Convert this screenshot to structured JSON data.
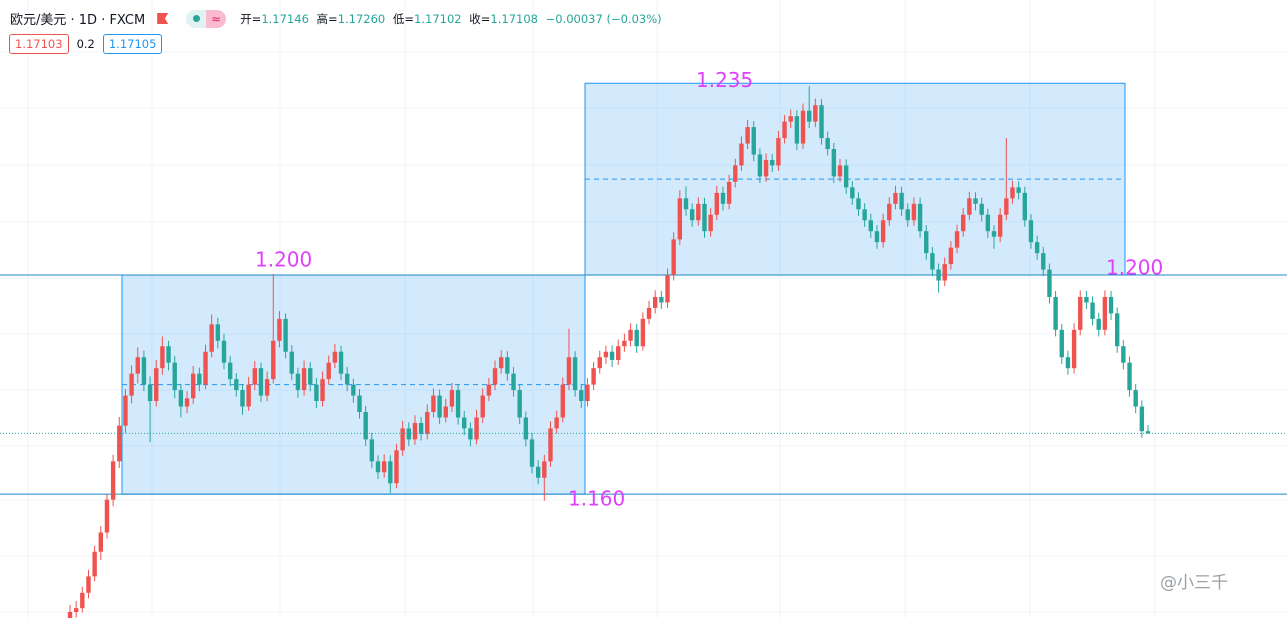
{
  "header": {
    "symbol": "欧元/美元 · 1D · FXCM",
    "ohlc": [
      {
        "label": "开=",
        "value": "1.17146"
      },
      {
        "label": "高=",
        "value": "1.17260"
      },
      {
        "label": "低=",
        "value": "1.17102"
      },
      {
        "label": "收=",
        "value": "1.17108"
      }
    ],
    "change": "−0.00037 (−0.03%)",
    "bid": "1.17103",
    "spread": "0.2",
    "ask": "1.17105",
    "watermark": "@小三千"
  },
  "chart_data": {
    "type": "candlestick",
    "ylim": [
      1.1374,
      1.2502
    ],
    "up_color": "#ef5350",
    "down_color": "#26a69a",
    "lines": [
      1.2,
      1.16
    ],
    "zones": [
      [
        1.16,
        1.2
      ],
      [
        1.2,
        1.235
      ]
    ],
    "annotations": [
      {
        "value": 1.2,
        "label": "1.200"
      },
      {
        "value": 1.235,
        "label": "1.235"
      },
      {
        "value": 1.2,
        "label": "1.200"
      },
      {
        "value": 1.16,
        "label": "1.160"
      }
    ],
    "candles": [
      [
        1.137,
        1.1398,
        1.1362,
        1.1385
      ],
      [
        1.1385,
        1.1405,
        1.1375,
        1.1392
      ],
      [
        1.1392,
        1.1431,
        1.1384,
        1.142
      ],
      [
        1.142,
        1.1462,
        1.141,
        1.145
      ],
      [
        1.145,
        1.1506,
        1.1441,
        1.1495
      ],
      [
        1.1495,
        1.1542,
        1.148,
        1.153
      ],
      [
        1.153,
        1.1601,
        1.1519,
        1.159
      ],
      [
        1.159,
        1.1672,
        1.1578,
        1.166
      ],
      [
        1.166,
        1.1741,
        1.1648,
        1.1725
      ],
      [
        1.1725,
        1.1792,
        1.1712,
        1.178
      ],
      [
        1.178,
        1.1835,
        1.1766,
        1.182
      ],
      [
        1.182,
        1.1868,
        1.1802,
        1.185
      ],
      [
        1.185,
        1.1862,
        1.1788,
        1.18
      ],
      [
        1.18,
        1.1815,
        1.1695,
        1.177
      ],
      [
        1.177,
        1.1845,
        1.176,
        1.183
      ],
      [
        1.183,
        1.1888,
        1.1818,
        1.187
      ],
      [
        1.187,
        1.188,
        1.1826,
        1.184
      ],
      [
        1.184,
        1.1852,
        1.1775,
        1.179
      ],
      [
        1.179,
        1.1801,
        1.174,
        1.176
      ],
      [
        1.176,
        1.1788,
        1.1748,
        1.1775
      ],
      [
        1.1775,
        1.1834,
        1.1765,
        1.182
      ],
      [
        1.182,
        1.1831,
        1.1788,
        1.18
      ],
      [
        1.18,
        1.1873,
        1.1792,
        1.186
      ],
      [
        1.186,
        1.1928,
        1.185,
        1.191
      ],
      [
        1.191,
        1.1922,
        1.1866,
        1.188
      ],
      [
        1.188,
        1.1893,
        1.1828,
        1.184
      ],
      [
        1.184,
        1.1852,
        1.1797,
        1.181
      ],
      [
        1.181,
        1.1821,
        1.1778,
        1.179
      ],
      [
        1.179,
        1.18,
        1.1745,
        1.176
      ],
      [
        1.176,
        1.1814,
        1.1752,
        1.18
      ],
      [
        1.18,
        1.1843,
        1.179,
        1.183
      ],
      [
        1.183,
        1.184,
        1.1768,
        1.178
      ],
      [
        1.178,
        1.1824,
        1.177,
        1.181
      ],
      [
        1.181,
        1.2002,
        1.1802,
        1.188
      ],
      [
        1.188,
        1.1934,
        1.1868,
        1.192
      ],
      [
        1.192,
        1.193,
        1.1848,
        1.186
      ],
      [
        1.186,
        1.1872,
        1.1808,
        1.182
      ],
      [
        1.182,
        1.1831,
        1.1776,
        1.179
      ],
      [
        1.179,
        1.1844,
        1.178,
        1.183
      ],
      [
        1.183,
        1.1841,
        1.1788,
        1.18
      ],
      [
        1.18,
        1.1812,
        1.1757,
        1.177
      ],
      [
        1.177,
        1.1824,
        1.176,
        1.181
      ],
      [
        1.181,
        1.1853,
        1.18,
        1.184
      ],
      [
        1.184,
        1.1874,
        1.183,
        1.186
      ],
      [
        1.186,
        1.1871,
        1.1808,
        1.182
      ],
      [
        1.182,
        1.1832,
        1.1788,
        1.18
      ],
      [
        1.18,
        1.1811,
        1.1767,
        1.178
      ],
      [
        1.178,
        1.1792,
        1.1738,
        1.175
      ],
      [
        1.175,
        1.1761,
        1.1688,
        1.17
      ],
      [
        1.17,
        1.1712,
        1.1648,
        1.166
      ],
      [
        1.166,
        1.1671,
        1.1628,
        1.164
      ],
      [
        1.164,
        1.1673,
        1.163,
        1.166
      ],
      [
        1.166,
        1.1671,
        1.1602,
        1.162
      ],
      [
        1.162,
        1.1692,
        1.1611,
        1.168
      ],
      [
        1.168,
        1.1734,
        1.167,
        1.172
      ],
      [
        1.172,
        1.1731,
        1.1688,
        1.17
      ],
      [
        1.17,
        1.1744,
        1.169,
        1.173
      ],
      [
        1.173,
        1.1741,
        1.1698,
        1.171
      ],
      [
        1.171,
        1.1764,
        1.17,
        1.175
      ],
      [
        1.175,
        1.1793,
        1.174,
        1.178
      ],
      [
        1.178,
        1.1791,
        1.1728,
        1.174
      ],
      [
        1.174,
        1.1774,
        1.1731,
        1.176
      ],
      [
        1.176,
        1.1803,
        1.175,
        1.179
      ],
      [
        1.179,
        1.1801,
        1.1727,
        1.174
      ],
      [
        1.174,
        1.1752,
        1.1708,
        1.172
      ],
      [
        1.172,
        1.1731,
        1.1687,
        1.17
      ],
      [
        1.17,
        1.1754,
        1.1691,
        1.174
      ],
      [
        1.174,
        1.1793,
        1.173,
        1.178
      ],
      [
        1.178,
        1.1812,
        1.177,
        1.18
      ],
      [
        1.18,
        1.1844,
        1.179,
        1.183
      ],
      [
        1.183,
        1.1863,
        1.182,
        1.185
      ],
      [
        1.185,
        1.1861,
        1.1807,
        1.182
      ],
      [
        1.182,
        1.1832,
        1.1778,
        1.179
      ],
      [
        1.179,
        1.1801,
        1.1728,
        1.174
      ],
      [
        1.174,
        1.1751,
        1.1687,
        1.17
      ],
      [
        1.17,
        1.1712,
        1.1638,
        1.165
      ],
      [
        1.165,
        1.1662,
        1.1618,
        1.163
      ],
      [
        1.163,
        1.1672,
        1.1588,
        1.166
      ],
      [
        1.166,
        1.1733,
        1.165,
        1.172
      ],
      [
        1.172,
        1.1752,
        1.1711,
        1.174
      ],
      [
        1.174,
        1.1813,
        1.1731,
        1.18
      ],
      [
        1.18,
        1.1902,
        1.179,
        1.185
      ],
      [
        1.185,
        1.1861,
        1.1778,
        1.179
      ],
      [
        1.179,
        1.1801,
        1.1757,
        1.177
      ],
      [
        1.177,
        1.1812,
        1.176,
        1.18
      ],
      [
        1.18,
        1.1841,
        1.179,
        1.183
      ],
      [
        1.183,
        1.1862,
        1.182,
        1.185
      ],
      [
        1.185,
        1.1871,
        1.1838,
        1.186
      ],
      [
        1.186,
        1.1872,
        1.1832,
        1.1845
      ],
      [
        1.1845,
        1.1882,
        1.1836,
        1.187
      ],
      [
        1.187,
        1.1893,
        1.186,
        1.188
      ],
      [
        1.188,
        1.1912,
        1.187,
        1.19
      ],
      [
        1.19,
        1.1911,
        1.1858,
        1.187
      ],
      [
        1.187,
        1.1932,
        1.1862,
        1.192
      ],
      [
        1.192,
        1.1953,
        1.191,
        1.194
      ],
      [
        1.194,
        1.1972,
        1.193,
        1.196
      ],
      [
        1.196,
        1.1971,
        1.1938,
        1.195
      ],
      [
        1.195,
        1.2012,
        1.194,
        1.2
      ],
      [
        1.2,
        1.2078,
        1.199,
        1.2065
      ],
      [
        1.2065,
        1.2155,
        1.2055,
        1.214
      ],
      [
        1.214,
        1.2162,
        1.2108,
        1.212
      ],
      [
        1.212,
        1.2131,
        1.2088,
        1.21
      ],
      [
        1.21,
        1.2142,
        1.209,
        1.213
      ],
      [
        1.213,
        1.2141,
        1.2068,
        1.208
      ],
      [
        1.208,
        1.2122,
        1.207,
        1.211
      ],
      [
        1.211,
        1.2163,
        1.21,
        1.215
      ],
      [
        1.215,
        1.2161,
        1.2118,
        1.213
      ],
      [
        1.213,
        1.2183,
        1.212,
        1.217
      ],
      [
        1.217,
        1.2212,
        1.216,
        1.22
      ],
      [
        1.22,
        1.2253,
        1.219,
        1.224
      ],
      [
        1.224,
        1.2283,
        1.223,
        1.227
      ],
      [
        1.227,
        1.2281,
        1.2208,
        1.222
      ],
      [
        1.222,
        1.2231,
        1.2168,
        1.218
      ],
      [
        1.218,
        1.2222,
        1.217,
        1.221
      ],
      [
        1.221,
        1.2221,
        1.2188,
        1.22
      ],
      [
        1.22,
        1.2263,
        1.219,
        1.225
      ],
      [
        1.225,
        1.2292,
        1.224,
        1.228
      ],
      [
        1.228,
        1.2302,
        1.2268,
        1.229
      ],
      [
        1.229,
        1.2301,
        1.2228,
        1.224
      ],
      [
        1.224,
        1.2313,
        1.223,
        1.23
      ],
      [
        1.23,
        1.2345,
        1.2268,
        1.228
      ],
      [
        1.228,
        1.2322,
        1.227,
        1.231
      ],
      [
        1.231,
        1.2321,
        1.2238,
        1.225
      ],
      [
        1.225,
        1.2262,
        1.2218,
        1.223
      ],
      [
        1.223,
        1.2241,
        1.2168,
        1.218
      ],
      [
        1.218,
        1.2212,
        1.217,
        1.22
      ],
      [
        1.22,
        1.2211,
        1.2148,
        1.216
      ],
      [
        1.216,
        1.2172,
        1.2128,
        1.214
      ],
      [
        1.214,
        1.2151,
        1.2108,
        1.212
      ],
      [
        1.212,
        1.2131,
        1.2088,
        1.21
      ],
      [
        1.21,
        1.2112,
        1.2068,
        1.208
      ],
      [
        1.208,
        1.2091,
        1.2048,
        1.206
      ],
      [
        1.206,
        1.2112,
        1.205,
        1.21
      ],
      [
        1.21,
        1.2142,
        1.209,
        1.213
      ],
      [
        1.213,
        1.2163,
        1.212,
        1.215
      ],
      [
        1.215,
        1.2161,
        1.2108,
        1.212
      ],
      [
        1.212,
        1.2131,
        1.2088,
        1.21
      ],
      [
        1.21,
        1.2142,
        1.209,
        1.213
      ],
      [
        1.213,
        1.2141,
        1.2068,
        1.208
      ],
      [
        1.208,
        1.2091,
        1.2028,
        1.204
      ],
      [
        1.204,
        1.2051,
        1.1998,
        1.201
      ],
      [
        1.201,
        1.2021,
        1.1968,
        1.199
      ],
      [
        1.199,
        1.2032,
        1.198,
        1.202
      ],
      [
        1.202,
        1.2062,
        1.201,
        1.205
      ],
      [
        1.205,
        1.2092,
        1.204,
        1.208
      ],
      [
        1.208,
        1.2122,
        1.207,
        1.211
      ],
      [
        1.211,
        1.2152,
        1.21,
        1.214
      ],
      [
        1.214,
        1.2151,
        1.2118,
        1.213
      ],
      [
        1.213,
        1.2141,
        1.2098,
        1.211
      ],
      [
        1.211,
        1.2121,
        1.2068,
        1.208
      ],
      [
        1.208,
        1.2091,
        1.2048,
        1.207
      ],
      [
        1.207,
        1.2122,
        1.206,
        1.211
      ],
      [
        1.211,
        1.225,
        1.21,
        1.214
      ],
      [
        1.214,
        1.2172,
        1.213,
        1.216
      ],
      [
        1.216,
        1.2171,
        1.2138,
        1.215
      ],
      [
        1.215,
        1.2161,
        1.2088,
        1.21
      ],
      [
        1.21,
        1.2111,
        1.2048,
        1.206
      ],
      [
        1.206,
        1.2072,
        1.2028,
        1.204
      ],
      [
        1.204,
        1.2051,
        1.1998,
        1.201
      ],
      [
        1.201,
        1.2021,
        1.1948,
        1.196
      ],
      [
        1.196,
        1.1971,
        1.1888,
        1.19
      ],
      [
        1.19,
        1.1911,
        1.1838,
        1.185
      ],
      [
        1.185,
        1.1862,
        1.1818,
        1.183
      ],
      [
        1.183,
        1.1912,
        1.182,
        1.19
      ],
      [
        1.19,
        1.1972,
        1.189,
        1.196
      ],
      [
        1.196,
        1.1971,
        1.1938,
        1.195
      ],
      [
        1.195,
        1.1961,
        1.1908,
        1.192
      ],
      [
        1.192,
        1.1931,
        1.1888,
        1.19
      ],
      [
        1.19,
        1.1972,
        1.189,
        1.196
      ],
      [
        1.196,
        1.1971,
        1.1918,
        1.193
      ],
      [
        1.193,
        1.1941,
        1.1858,
        1.187
      ],
      [
        1.187,
        1.1881,
        1.1828,
        1.184
      ],
      [
        1.184,
        1.1851,
        1.1778,
        1.179
      ],
      [
        1.179,
        1.1801,
        1.1748,
        1.176
      ],
      [
        1.176,
        1.1771,
        1.1703,
        1.1715
      ],
      [
        1.1715,
        1.1726,
        1.171,
        1.1711
      ]
    ]
  }
}
